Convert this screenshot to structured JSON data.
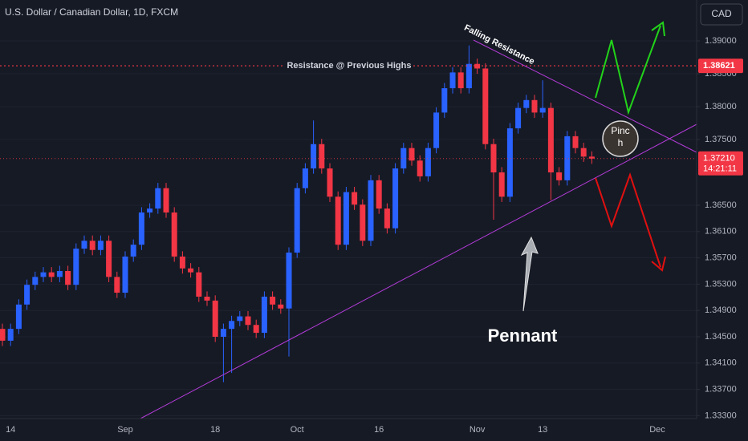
{
  "chart_data": {
    "type": "candlestick",
    "title": "U.S. Dollar / Canadian Dollar, 1D, FXCM",
    "currency": "CAD",
    "up_color": "#2962ff",
    "down_color": "#f23645",
    "grid": true,
    "categories": [
      null,
      "14",
      null,
      null,
      null,
      null,
      null,
      null,
      null,
      null,
      null,
      null,
      null,
      null,
      null,
      "Sep",
      null,
      null,
      null,
      null,
      null,
      null,
      null,
      null,
      null,
      null,
      "18",
      null,
      null,
      null,
      null,
      null,
      null,
      null,
      null,
      null,
      "Oct",
      null,
      null,
      null,
      null,
      null,
      null,
      null,
      null,
      null,
      "16",
      null,
      null,
      null,
      null,
      null,
      null,
      null,
      null,
      null,
      null,
      null,
      "Nov",
      null,
      null,
      null,
      null,
      null,
      null,
      null,
      "13",
      null,
      null,
      null,
      null,
      null,
      null,
      null,
      null,
      null,
      null,
      null,
      null,
      null,
      "Dec",
      null,
      null,
      null,
      null
    ],
    "open": [
      1.3462,
      1.3444,
      1.3462,
      1.3499,
      1.3529,
      1.3541,
      1.3548,
      1.3541,
      1.355,
      1.3529,
      1.3584,
      1.3596,
      1.3582,
      1.3596,
      1.3541,
      1.3517,
      1.3572,
      1.359,
      1.3639,
      1.3645,
      1.3676,
      1.3639,
      1.3572,
      1.3554,
      1.3548,
      1.3511,
      1.3505,
      1.345,
      1.3462,
      1.3474,
      1.3481,
      1.3468,
      1.3456,
      1.3511,
      1.3499,
      1.3493,
      1.3578,
      1.3676,
      1.3706,
      1.3743,
      1.3706,
      1.3663,
      1.359,
      1.367,
      1.3651,
      1.3596,
      1.3688,
      1.3645,
      1.3615,
      1.3706,
      1.3737,
      1.3718,
      1.3694,
      1.3737,
      1.3791,
      1.3828,
      1.3852,
      1.3828,
      1.3865,
      1.3858,
      1.3743,
      1.37,
      1.3663,
      1.3767,
      1.3798,
      1.381,
      1.3791,
      1.3798,
      1.37,
      1.3688,
      1.3755,
      1.3737,
      1.3724,
      null,
      null,
      null,
      null,
      null,
      null,
      null,
      null,
      null,
      null,
      null,
      null
    ],
    "high": [
      1.347,
      1.347,
      1.3507,
      1.3537,
      1.3549,
      1.3556,
      1.3556,
      1.3558,
      1.3558,
      1.3592,
      1.3604,
      1.3604,
      1.3604,
      1.3604,
      1.3549,
      1.358,
      1.3598,
      1.3647,
      1.3653,
      1.3684,
      1.3684,
      1.3647,
      1.358,
      1.3562,
      1.3556,
      1.3519,
      1.3513,
      1.347,
      1.3482,
      1.3489,
      1.3489,
      1.3476,
      1.3519,
      1.3519,
      1.3507,
      1.3586,
      1.3684,
      1.3714,
      1.3779,
      1.3751,
      1.3714,
      1.3671,
      1.3678,
      1.3678,
      1.3659,
      1.3696,
      1.3696,
      1.3653,
      1.3714,
      1.3745,
      1.3745,
      1.3726,
      1.3745,
      1.3799,
      1.3836,
      1.386,
      1.386,
      1.3893,
      1.3873,
      1.3866,
      1.3751,
      1.3708,
      1.3775,
      1.3806,
      1.3818,
      1.3818,
      1.384,
      1.3806,
      1.3708,
      1.3763,
      1.3763,
      1.3745,
      1.3732,
      null,
      null,
      null,
      null,
      null,
      null,
      null,
      null,
      null,
      null,
      null,
      null
    ],
    "low": [
      1.3436,
      1.3436,
      1.3454,
      1.3491,
      1.3521,
      1.3533,
      1.3533,
      1.3533,
      1.3521,
      1.3521,
      1.3576,
      1.3574,
      1.3574,
      1.3533,
      1.3509,
      1.3509,
      1.3564,
      1.3582,
      1.3631,
      1.3637,
      1.3631,
      1.3564,
      1.3546,
      1.354,
      1.3503,
      1.3497,
      1.3442,
      1.3381,
      1.3395,
      1.3466,
      1.346,
      1.3448,
      1.3448,
      1.3491,
      1.3485,
      1.342,
      1.357,
      1.3668,
      1.3698,
      1.3698,
      1.3655,
      1.3582,
      1.3582,
      1.3643,
      1.3588,
      1.3588,
      1.3637,
      1.3607,
      1.3607,
      1.3698,
      1.371,
      1.3686,
      1.3686,
      1.3729,
      1.3783,
      1.382,
      1.382,
      1.382,
      1.385,
      1.3735,
      1.3628,
      1.3655,
      1.3655,
      1.3759,
      1.379,
      1.3783,
      1.3783,
      1.3658,
      1.368,
      1.368,
      1.3729,
      1.3716,
      1.3713,
      null,
      null,
      null,
      null,
      null,
      null,
      null,
      null,
      null,
      null,
      null,
      null
    ],
    "close": [
      1.3444,
      1.3462,
      1.3499,
      1.3529,
      1.3541,
      1.3548,
      1.3541,
      1.355,
      1.3529,
      1.3584,
      1.3596,
      1.3582,
      1.3596,
      1.3541,
      1.3517,
      1.3572,
      1.359,
      1.3639,
      1.3645,
      1.3676,
      1.3639,
      1.3572,
      1.3554,
      1.3548,
      1.3511,
      1.3505,
      1.345,
      1.3462,
      1.3474,
      1.3481,
      1.3468,
      1.3456,
      1.3511,
      1.3499,
      1.3493,
      1.3578,
      1.3676,
      1.3706,
      1.3743,
      1.3706,
      1.3663,
      1.359,
      1.367,
      1.3651,
      1.3596,
      1.3688,
      1.3645,
      1.3615,
      1.3706,
      1.3737,
      1.3718,
      1.3694,
      1.3737,
      1.3791,
      1.3828,
      1.3852,
      1.3828,
      1.3865,
      1.3858,
      1.3743,
      1.37,
      1.3663,
      1.3767,
      1.3798,
      1.381,
      1.3791,
      1.3798,
      1.37,
      1.3688,
      1.3755,
      1.3737,
      1.3724,
      1.3721,
      null,
      null,
      null,
      null,
      null,
      null,
      null,
      null,
      null,
      null,
      null,
      null
    ],
    "ylim": [
      1.33256,
      1.39622
    ],
    "yticks": [
      {
        "value": 1.333,
        "label": "1.33300"
      },
      {
        "value": 1.337,
        "label": "1.33700"
      },
      {
        "value": 1.341,
        "label": "1.34100"
      },
      {
        "value": 1.345,
        "label": "1.34500"
      },
      {
        "value": 1.349,
        "label": "1.34900"
      },
      {
        "value": 1.353,
        "label": "1.35300"
      },
      {
        "value": 1.357,
        "label": "1.35700"
      },
      {
        "value": 1.361,
        "label": "1.36100"
      },
      {
        "value": 1.365,
        "label": "1.36500"
      },
      {
        "value": 1.375,
        "label": "1.37500"
      },
      {
        "value": 1.38,
        "label": "1.38000"
      },
      {
        "value": 1.385,
        "label": "1.38500"
      },
      {
        "value": 1.39,
        "label": "1.39000"
      }
    ],
    "resistance": {
      "value": 1.38621,
      "label": "1.38621",
      "text": "Resistance @ Previous Highs",
      "color": "#f23645"
    },
    "last_price": {
      "value": 1.3721,
      "label": "1.37210",
      "countdown": "14:21:11",
      "color": "#f23645"
    },
    "annotations": {
      "falling": "Falling Resistance",
      "pattern": "Pennant",
      "pinch": [
        "Pinc",
        "h"
      ]
    }
  }
}
